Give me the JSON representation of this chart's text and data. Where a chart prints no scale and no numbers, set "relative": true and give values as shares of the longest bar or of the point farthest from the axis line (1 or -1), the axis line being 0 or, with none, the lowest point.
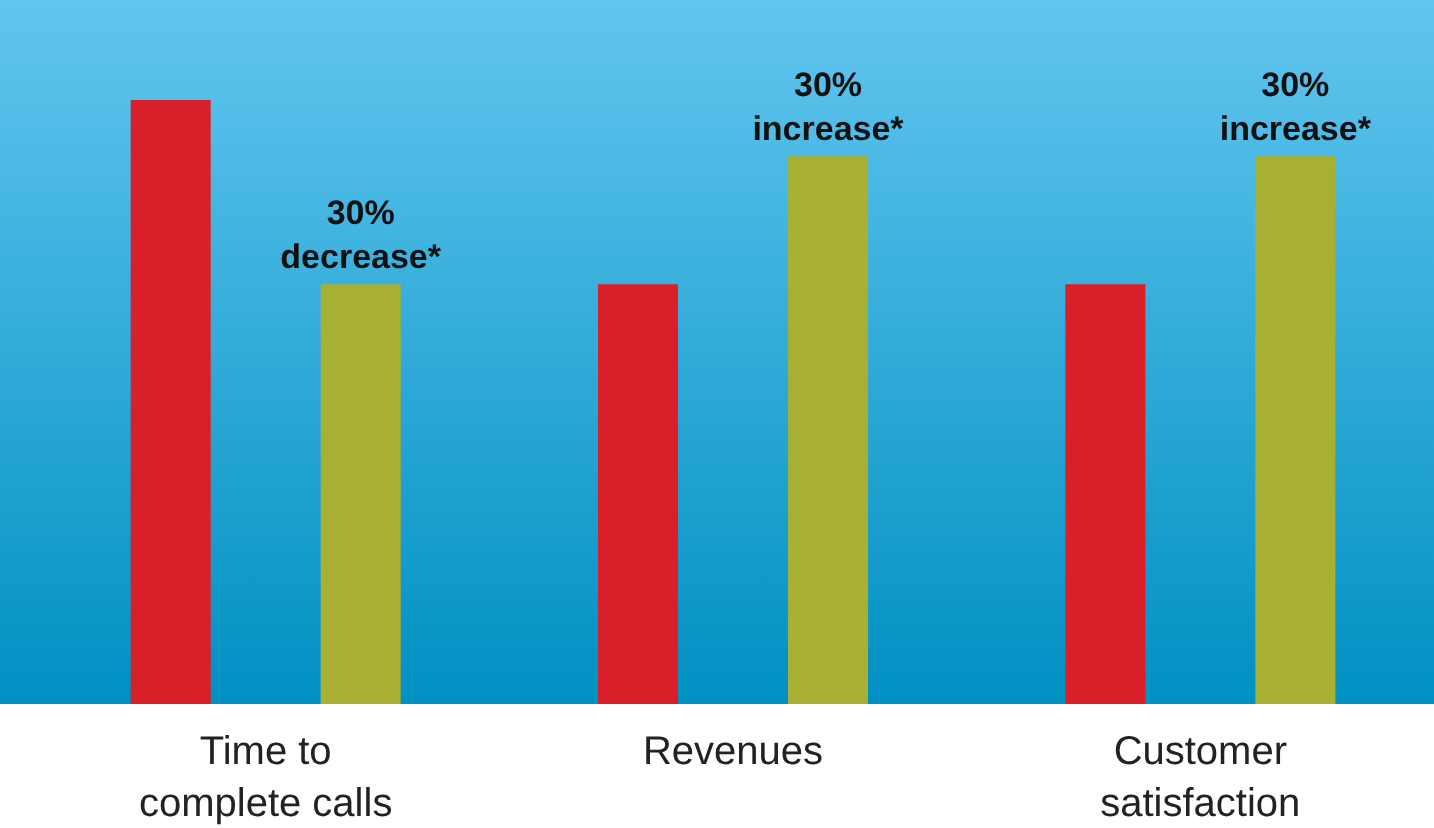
{
  "chart_data": {
    "type": "bar",
    "relative": true,
    "categories": [
      "Time to complete calls",
      "Revenues",
      "Customer satisfaction"
    ],
    "series": [
      {
        "color": "#d91f2a",
        "values": [
          1,
          0.695,
          0.695
        ]
      },
      {
        "color": "#a8b034",
        "values": [
          0.695,
          0.907,
          0.907
        ]
      }
    ],
    "annotations": [
      "30% decrease*",
      "30% increase*",
      "30% increase*"
    ]
  }
}
